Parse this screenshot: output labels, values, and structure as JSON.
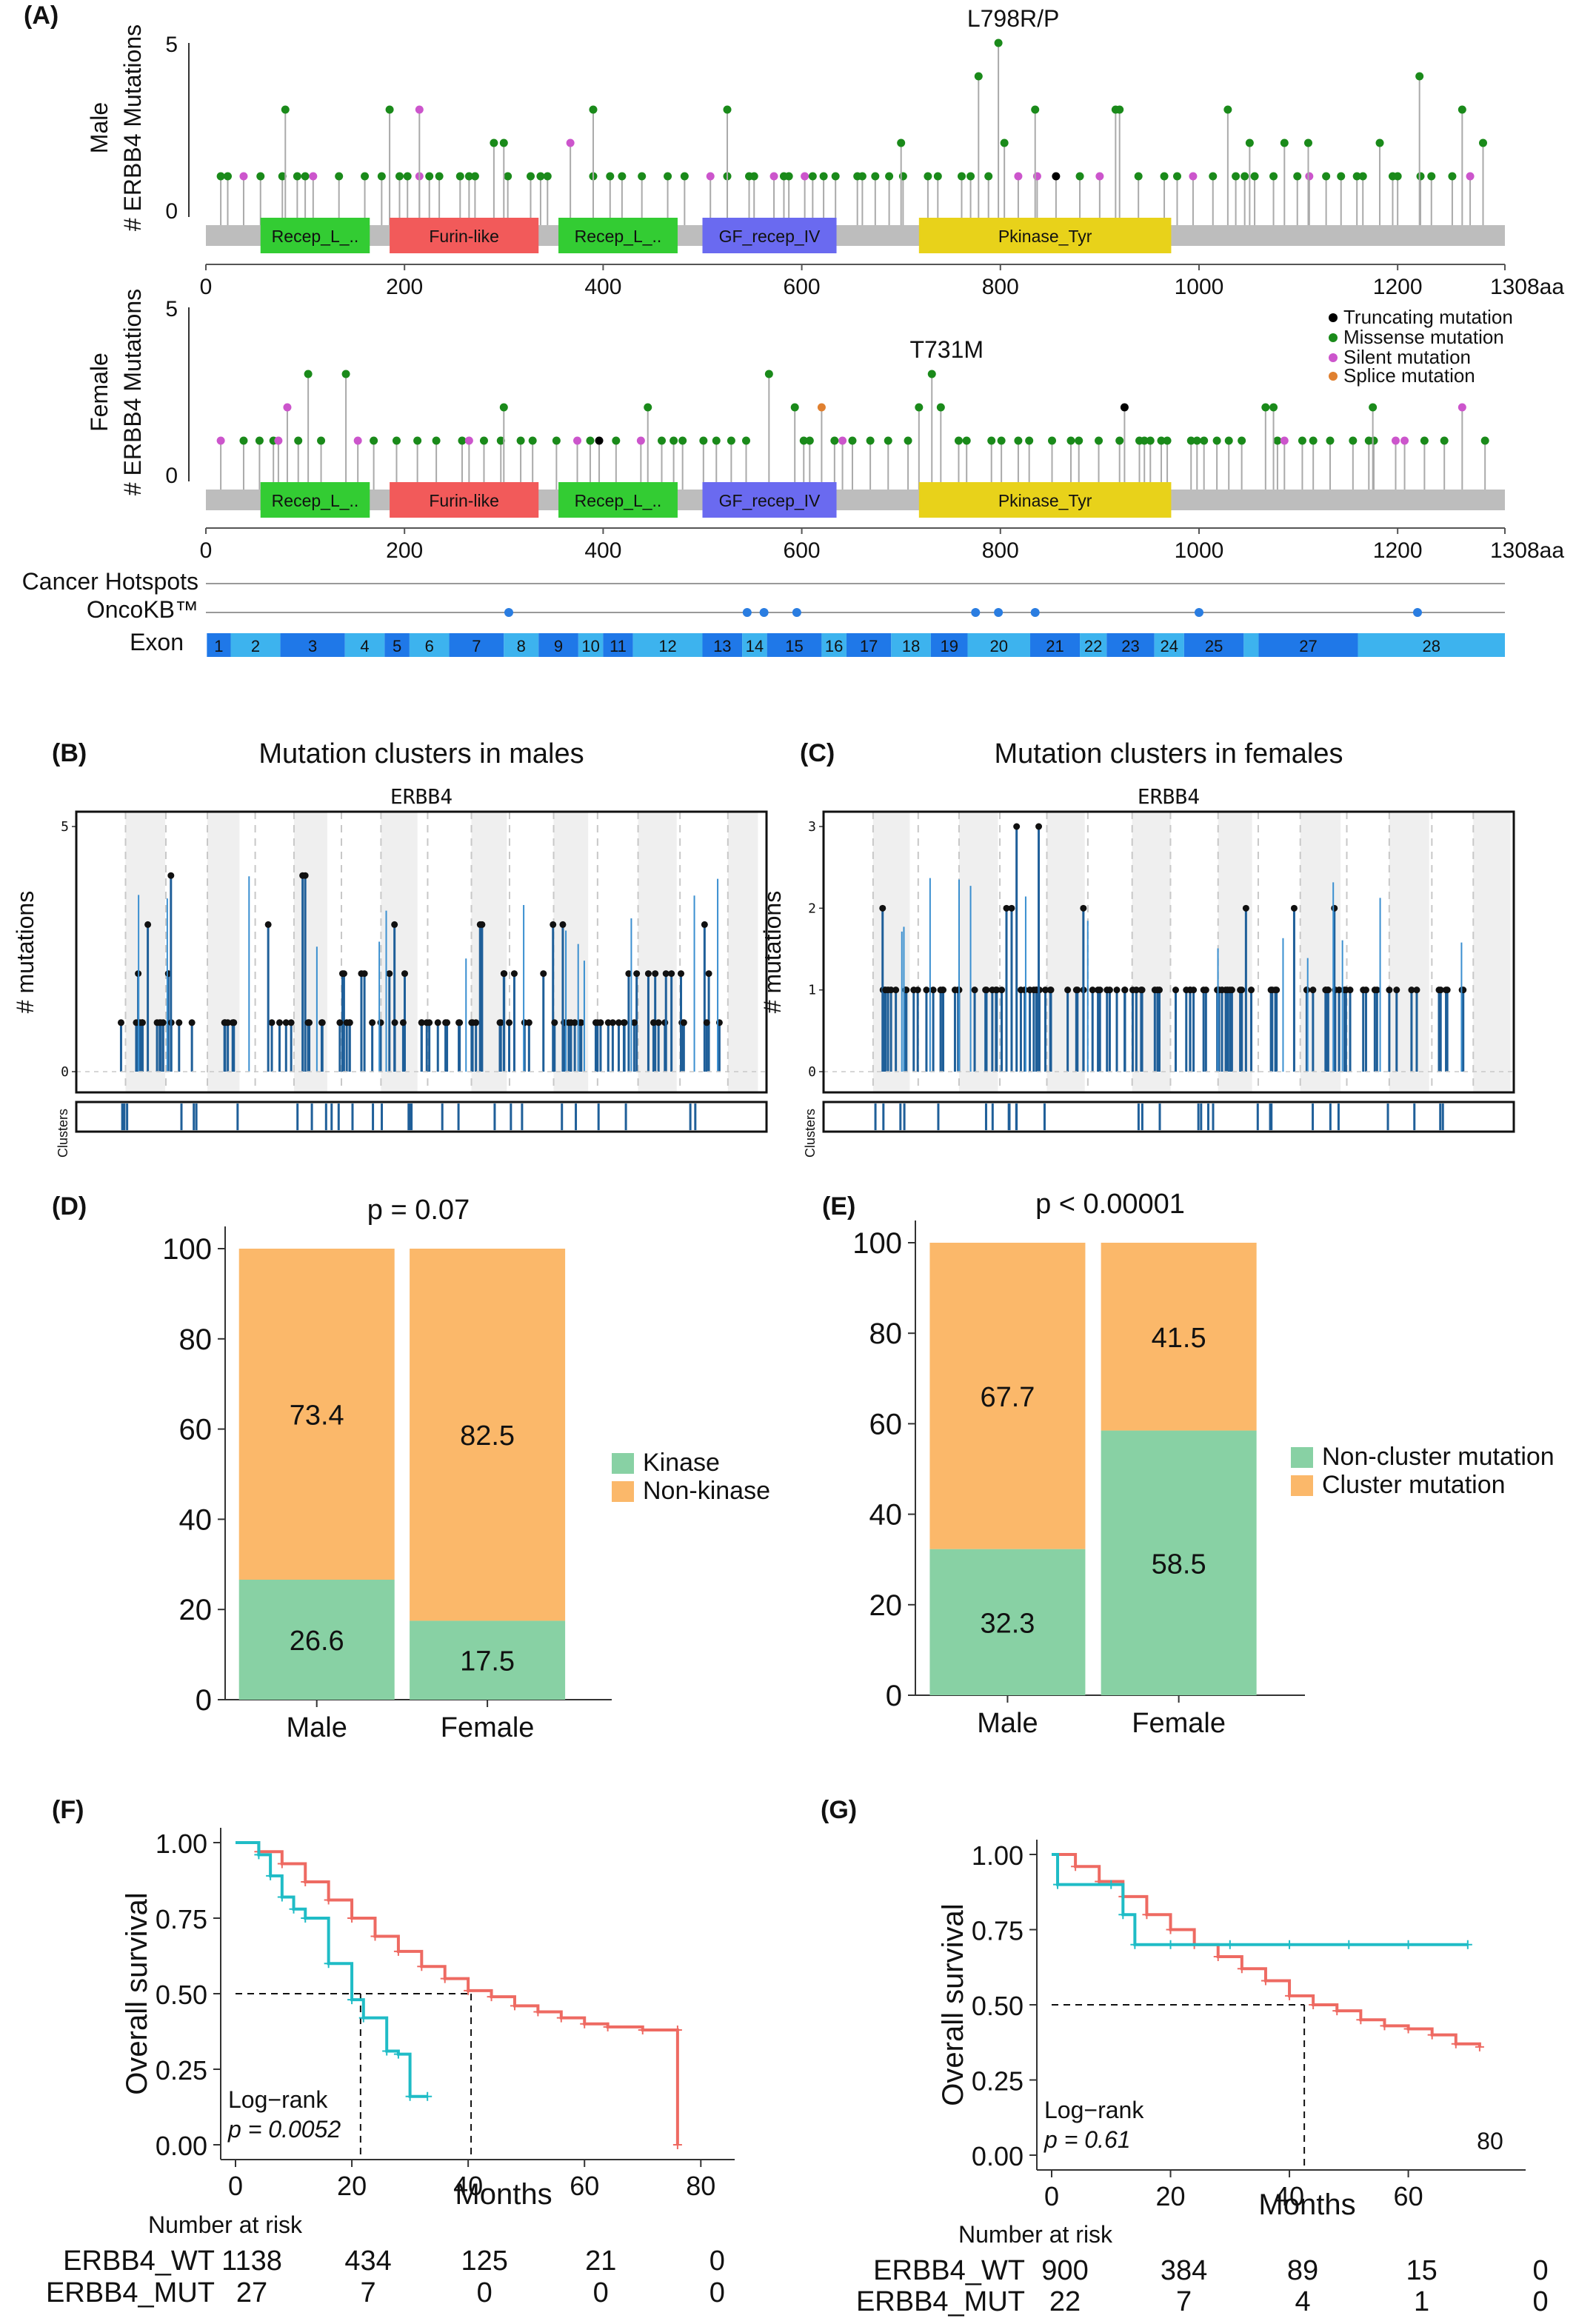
{
  "panels": {
    "A": "(A)",
    "B": "(B)",
    "C": "(C)",
    "D": "(D)",
    "E": "(E)",
    "F": "(F)",
    "G": "(G)"
  },
  "colors": {
    "missense": "#1a8a1a",
    "truncating": "#000000",
    "silent": "#cc55cc",
    "splice": "#e08030",
    "domain_recep": "#33cc33",
    "domain_furin": "#f25a5a",
    "domain_gf": "#6a6af0",
    "domain_pkinase": "#e8d21a",
    "backbone": "#bdbdbd",
    "oncokb": "#2a7de1",
    "exon_dark": "#1f78e8",
    "exon_light": "#3db3ee",
    "cluster_line": "#1f5f99",
    "cluster_black": "#111111",
    "kinase": "#88d1a4",
    "nonkinase": "#fbb86a",
    "wt": "#ee6a62",
    "mut": "#1fbcc6"
  },
  "lollipop": {
    "male": {
      "ylabel_1": "Male",
      "ylabel_2": "# ERBB4 Mutations",
      "ytick_top": "5",
      "ytick_bottom": "0",
      "hotspot": "L798R/P"
    },
    "female": {
      "ylabel_1": "Female",
      "ylabel_2": "# ERBB4 Mutations",
      "ytick_top": "5",
      "ytick_bottom": "0",
      "hotspot": "T731M"
    },
    "xticks": [
      "0",
      "200",
      "400",
      "600",
      "800",
      "1000",
      "1200",
      "1308aa"
    ],
    "domains": [
      {
        "label": "Recep_L_..",
        "start": 55,
        "end": 165,
        "kind": "recep"
      },
      {
        "label": "Furin-like",
        "start": 185,
        "end": 335,
        "kind": "furin"
      },
      {
        "label": "Recep_L_..",
        "start": 355,
        "end": 475,
        "kind": "recep"
      },
      {
        "label": "GF_recep_IV",
        "start": 500,
        "end": 635,
        "kind": "gf"
      },
      {
        "label": "Pkinase_Tyr",
        "start": 718,
        "end": 972,
        "kind": "pkinase"
      }
    ],
    "legend": [
      "Truncating mutation",
      "Missense mutation",
      "Silent mutation",
      "Splice mutation"
    ],
    "tracks": {
      "hotspots_label": "Cancer Hotspots",
      "oncokb_label": "OncoKB™",
      "exon_label": "Exon",
      "oncokb_positions": [
        305,
        545,
        562,
        595,
        775,
        798,
        835,
        1000,
        1220
      ],
      "exons": [
        {
          "n": "1",
          "s": 1,
          "e": 25
        },
        {
          "n": "2",
          "s": 25,
          "e": 75
        },
        {
          "n": "3",
          "s": 75,
          "e": 140
        },
        {
          "n": "4",
          "s": 140,
          "e": 180
        },
        {
          "n": "5",
          "s": 180,
          "e": 205
        },
        {
          "n": "6",
          "s": 205,
          "e": 245
        },
        {
          "n": "7",
          "s": 245,
          "e": 300
        },
        {
          "n": "8",
          "s": 300,
          "e": 335
        },
        {
          "n": "9",
          "s": 335,
          "e": 375
        },
        {
          "n": "10",
          "s": 375,
          "e": 400
        },
        {
          "n": "11",
          "s": 400,
          "e": 430
        },
        {
          "n": "12",
          "s": 430,
          "e": 500
        },
        {
          "n": "13",
          "s": 500,
          "e": 540
        },
        {
          "n": "14",
          "s": 540,
          "e": 565
        },
        {
          "n": "15",
          "s": 565,
          "e": 620
        },
        {
          "n": "16",
          "s": 620,
          "e": 645
        },
        {
          "n": "17",
          "s": 645,
          "e": 690
        },
        {
          "n": "18",
          "s": 690,
          "e": 730
        },
        {
          "n": "19",
          "s": 730,
          "e": 767
        },
        {
          "n": "20",
          "s": 767,
          "e": 830
        },
        {
          "n": "21",
          "s": 830,
          "e": 880
        },
        {
          "n": "22",
          "s": 880,
          "e": 907
        },
        {
          "n": "23",
          "s": 907,
          "e": 955
        },
        {
          "n": "24",
          "s": 955,
          "e": 985
        },
        {
          "n": "25",
          "s": 985,
          "e": 1045
        },
        {
          "n": "",
          "s": 1045,
          "e": 1060
        },
        {
          "n": "27",
          "s": 1060,
          "e": 1160
        },
        {
          "n": "28",
          "s": 1160,
          "e": 1308
        }
      ]
    }
  },
  "cluster_plots": {
    "B": {
      "title": "Mutation clusters in males",
      "gene": "ERBB4",
      "ylabel": "# mutations",
      "cluster_label": "Clusters",
      "yticks": [
        "0",
        "5"
      ],
      "ymax": 5
    },
    "C": {
      "title": "Mutation clusters in females",
      "gene": "ERBB4",
      "ylabel": "# mutations",
      "cluster_label": "Clusters",
      "yticks": [
        "0",
        "1",
        "2",
        "3"
      ],
      "ymax": 3
    }
  },
  "chart_data": [
    {
      "id": "D",
      "type": "bar",
      "title": "p = 0.07",
      "categories": [
        "Male",
        "Female"
      ],
      "series": [
        {
          "name": "Kinase",
          "values": [
            26.6,
            17.5
          ]
        },
        {
          "name": "Non-kinase",
          "values": [
            73.4,
            82.5
          ]
        }
      ],
      "yticks": [
        "0",
        "20",
        "40",
        "60",
        "80",
        "100"
      ],
      "ylim": [
        0,
        100
      ],
      "legend_position": "right"
    },
    {
      "id": "E",
      "type": "bar",
      "title": "p < 0.00001",
      "categories": [
        "Male",
        "Female"
      ],
      "series": [
        {
          "name": "Non-cluster mutation",
          "values": [
            32.3,
            58.5
          ]
        },
        {
          "name": "Cluster mutation",
          "values": [
            67.7,
            41.5
          ]
        }
      ],
      "yticks": [
        "0",
        "20",
        "40",
        "60",
        "80",
        "100"
      ],
      "ylim": [
        0,
        100
      ],
      "legend_position": "right"
    },
    {
      "id": "F",
      "type": "line",
      "ylabel": "Overall survival",
      "xlabel": "Months",
      "xticks": [
        "0",
        "20",
        "40",
        "60",
        "80"
      ],
      "yticks": [
        "0.00",
        "0.25",
        "0.50",
        "0.75",
        "1.00"
      ],
      "xlim": [
        0,
        82
      ],
      "ylim": [
        0,
        1
      ],
      "logrank_1": "Log−rank",
      "logrank_p": "p = 0.0052",
      "median_x": [
        21.5,
        40.5
      ],
      "series": [
        {
          "name": "ERBB4_WT",
          "x": [
            0,
            4,
            8,
            12,
            16,
            20,
            24,
            28,
            32,
            36,
            40,
            44,
            48,
            52,
            56,
            60,
            64,
            70,
            76,
            76
          ],
          "y": [
            1.0,
            0.97,
            0.93,
            0.87,
            0.81,
            0.75,
            0.69,
            0.64,
            0.59,
            0.55,
            0.51,
            0.49,
            0.46,
            0.44,
            0.42,
            0.4,
            0.39,
            0.38,
            0.38,
            0.0
          ]
        },
        {
          "name": "ERBB4_MUT",
          "x": [
            0,
            4,
            6,
            8,
            10,
            12,
            16,
            20,
            22,
            26,
            28,
            30,
            33
          ],
          "y": [
            1.0,
            0.96,
            0.89,
            0.82,
            0.78,
            0.75,
            0.6,
            0.48,
            0.42,
            0.31,
            0.3,
            0.16,
            0.16
          ]
        }
      ],
      "risk_title": "Number at risk",
      "risk_rows": [
        {
          "label": "ERBB4_WT",
          "values": [
            "1138",
            "434",
            "125",
            "21",
            "0"
          ]
        },
        {
          "label": "ERBB4_MUT",
          "values": [
            "27",
            "7",
            "0",
            "0",
            "0"
          ]
        }
      ]
    },
    {
      "id": "G",
      "type": "line",
      "ylabel": "Overall survival",
      "xlabel": "Months",
      "xticks": [
        "0",
        "20",
        "40",
        "60"
      ],
      "yticks": [
        "0.00",
        "0.25",
        "0.50",
        "0.75",
        "1.00"
      ],
      "xlim": [
        0,
        76
      ],
      "ylim": [
        0,
        1
      ],
      "logrank_1": "Log−rank",
      "logrank_p": "p = 0.61",
      "extra_tick": "80",
      "median_x": [
        42.5
      ],
      "series": [
        {
          "name": "ERBB4_WT",
          "x": [
            0,
            4,
            8,
            12,
            16,
            20,
            24,
            28,
            32,
            36,
            40,
            44,
            48,
            52,
            56,
            60,
            64,
            68,
            72
          ],
          "y": [
            1.0,
            0.96,
            0.91,
            0.86,
            0.8,
            0.75,
            0.7,
            0.66,
            0.62,
            0.58,
            0.53,
            0.5,
            0.48,
            0.45,
            0.43,
            0.42,
            0.4,
            0.37,
            0.36
          ]
        },
        {
          "name": "ERBB4_MUT",
          "x": [
            0,
            1,
            10,
            12,
            14,
            20,
            30,
            40,
            50,
            60,
            70
          ],
          "y": [
            1.0,
            0.9,
            0.9,
            0.8,
            0.7,
            0.7,
            0.7,
            0.7,
            0.7,
            0.7,
            0.7
          ]
        }
      ],
      "risk_title": "Number at risk",
      "risk_rows": [
        {
          "label": "ERBB4_WT",
          "values": [
            "900",
            "384",
            "89",
            "15",
            "0"
          ]
        },
        {
          "label": "ERBB4_MUT",
          "values": [
            "22",
            "7",
            "4",
            "1",
            "0"
          ]
        }
      ]
    }
  ]
}
